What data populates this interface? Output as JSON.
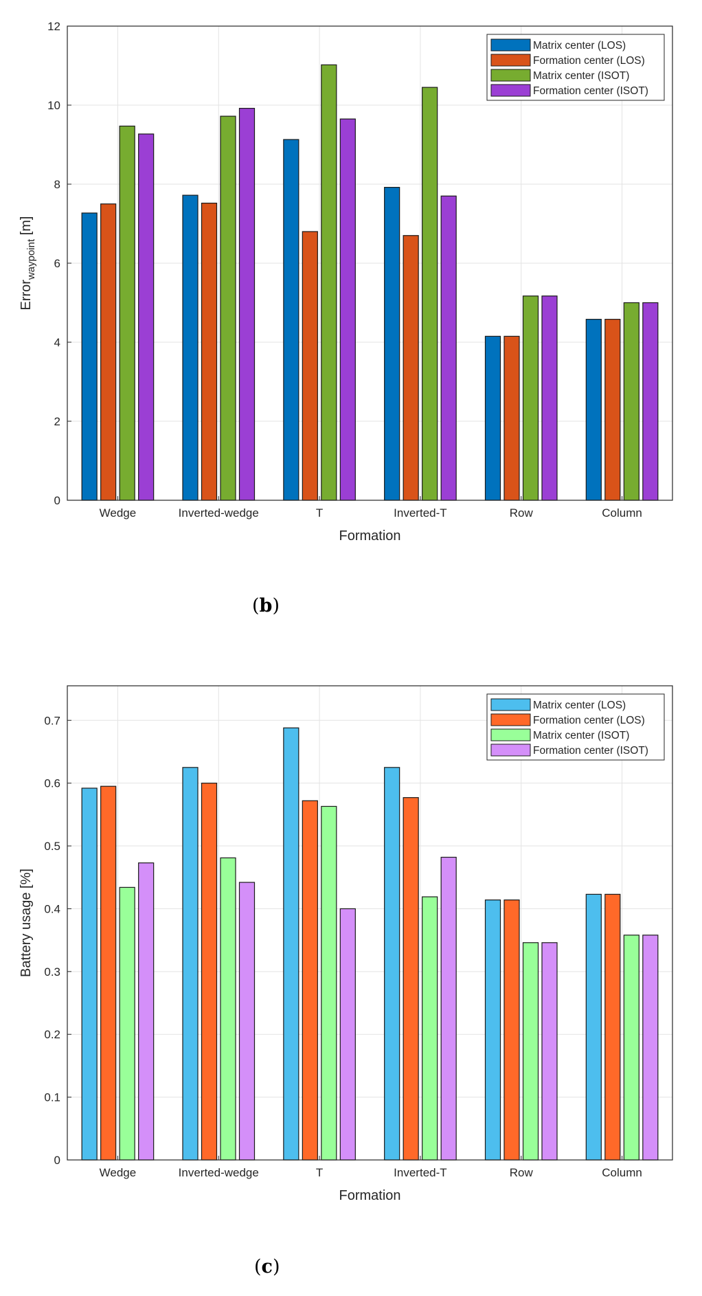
{
  "charts": [
    {
      "id": "b",
      "panel_label": "b",
      "palette": [
        "#0072BD",
        "#D95319",
        "#77AC30",
        "#9B3FD4"
      ]
    },
    {
      "id": "c",
      "panel_label": "c",
      "palette": [
        "#4DBEEE",
        "#FF6929",
        "#99FF99",
        "#D48FF9"
      ]
    }
  ],
  "chart_data": [
    {
      "type": "bar",
      "title": "",
      "xlabel": "Formation",
      "ylabel": "Error",
      "ylabel_subscript": "waypoint",
      "ylabel_unit": " [m]",
      "categories": [
        "Wedge",
        "Inverted-wedge",
        "T",
        "Inverted-T",
        "Row",
        "Column"
      ],
      "ylim": [
        0,
        12
      ],
      "yticks": [
        0,
        2,
        4,
        6,
        8,
        10,
        12
      ],
      "ytick_labels": [
        "0",
        "2",
        "4",
        "6",
        "8",
        "10",
        "12"
      ],
      "grid": true,
      "legend_position": "top-right",
      "series": [
        {
          "name": "Matrix center (LOS)",
          "values": [
            7.27,
            7.72,
            9.13,
            7.92,
            4.15,
            4.58
          ]
        },
        {
          "name": "Formation center (LOS)",
          "values": [
            7.5,
            7.52,
            6.8,
            6.7,
            4.15,
            4.58
          ]
        },
        {
          "name": "Matrix center (ISOT)",
          "values": [
            9.47,
            9.72,
            11.02,
            10.45,
            5.17,
            5.0
          ]
        },
        {
          "name": "Formation center (ISOT)",
          "values": [
            9.27,
            9.92,
            9.65,
            7.7,
            5.17,
            5.0
          ]
        }
      ]
    },
    {
      "type": "bar",
      "title": "",
      "xlabel": "Formation",
      "ylabel": "Battery usage [%]",
      "ylabel_subscript": "",
      "ylabel_unit": "",
      "categories": [
        "Wedge",
        "Inverted-wedge",
        "T",
        "Inverted-T",
        "Row",
        "Column"
      ],
      "ylim": [
        0,
        0.755
      ],
      "yticks": [
        0,
        0.1,
        0.2,
        0.3,
        0.4,
        0.5,
        0.6,
        0.7
      ],
      "ytick_labels": [
        "0",
        "0.1",
        "0.2",
        "0.3",
        "0.4",
        "0.5",
        "0.6",
        "0.7"
      ],
      "grid": true,
      "legend_position": "top-right",
      "series": [
        {
          "name": "Matrix center (LOS)",
          "values": [
            0.592,
            0.625,
            0.688,
            0.625,
            0.414,
            0.423
          ]
        },
        {
          "name": "Formation center (LOS)",
          "values": [
            0.595,
            0.6,
            0.572,
            0.577,
            0.414,
            0.423
          ]
        },
        {
          "name": "Matrix center (ISOT)",
          "values": [
            0.434,
            0.481,
            0.563,
            0.419,
            0.346,
            0.358
          ]
        },
        {
          "name": "Formation center (ISOT)",
          "values": [
            0.473,
            0.442,
            0.4,
            0.482,
            0.346,
            0.358
          ]
        }
      ]
    }
  ]
}
